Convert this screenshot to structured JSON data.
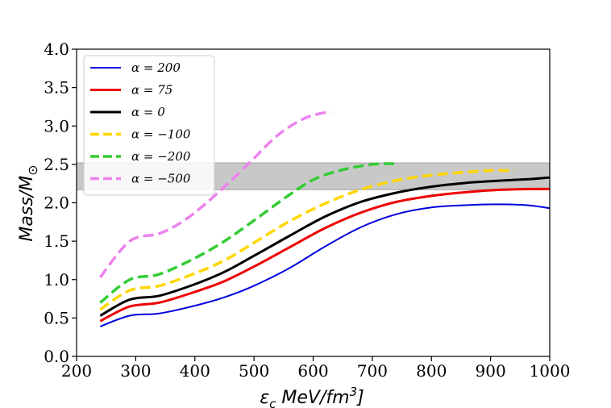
{
  "chart_data": {
    "type": "line",
    "title": "",
    "xlabel": "ε_c MeV/fm³]",
    "ylabel": "Mass/M_⊙",
    "xlim": [
      200,
      1000
    ],
    "ylim": [
      0.0,
      4.0
    ],
    "xticks": [
      "200",
      "300",
      "400",
      "500",
      "600",
      "700",
      "800",
      "900",
      "1000"
    ],
    "yticks": [
      "0.0",
      "0.5",
      "1.0",
      "1.5",
      "2.0",
      "2.5",
      "3.0",
      "3.5",
      "4.0"
    ],
    "grid": false,
    "legend_position": "top-left",
    "band": {
      "y_low": 2.17,
      "y_high": 2.52,
      "color": "#c8c8c8"
    },
    "series": [
      {
        "name": "α = 200",
        "color": "#0000dd",
        "dashed": false,
        "width": 2,
        "x": [
          240,
          290,
          340,
          400,
          450,
          500,
          560,
          620,
          680,
          740,
          800,
          860,
          910,
          960,
          1000
        ],
        "y": [
          0.39,
          0.53,
          0.56,
          0.66,
          0.77,
          0.92,
          1.15,
          1.43,
          1.68,
          1.85,
          1.94,
          1.97,
          1.98,
          1.97,
          1.93
        ]
      },
      {
        "name": "α = 75",
        "color": "#ee0000",
        "dashed": false,
        "width": 3,
        "x": [
          240,
          290,
          340,
          400,
          450,
          500,
          560,
          620,
          680,
          740,
          800,
          860,
          920,
          970,
          1000
        ],
        "y": [
          0.46,
          0.65,
          0.7,
          0.84,
          0.98,
          1.17,
          1.42,
          1.67,
          1.87,
          2.01,
          2.09,
          2.14,
          2.17,
          2.18,
          2.18
        ]
      },
      {
        "name": "α = 0",
        "color": "#000000",
        "dashed": false,
        "width": 3,
        "x": [
          240,
          290,
          340,
          400,
          450,
          500,
          560,
          620,
          680,
          740,
          800,
          860,
          920,
          970,
          1000
        ],
        "y": [
          0.53,
          0.74,
          0.79,
          0.94,
          1.1,
          1.31,
          1.57,
          1.82,
          2.01,
          2.13,
          2.21,
          2.26,
          2.29,
          2.31,
          2.33
        ]
      },
      {
        "name": "α = −100",
        "color": "#ffd700",
        "dashed": true,
        "width": 3.5,
        "x": [
          240,
          290,
          340,
          400,
          450,
          500,
          560,
          620,
          680,
          740,
          800,
          860,
          900,
          940
        ],
        "y": [
          0.61,
          0.86,
          0.92,
          1.08,
          1.25,
          1.48,
          1.76,
          1.99,
          2.17,
          2.29,
          2.36,
          2.4,
          2.42,
          2.42
        ]
      },
      {
        "name": "α = −200",
        "color": "#33cc33",
        "dashed": true,
        "width": 3.5,
        "x": [
          240,
          290,
          340,
          400,
          450,
          500,
          550,
          600,
          650,
          700,
          740
        ],
        "y": [
          0.7,
          1.0,
          1.07,
          1.28,
          1.5,
          1.77,
          2.05,
          2.3,
          2.43,
          2.5,
          2.51
        ]
      },
      {
        "name": "α = −500",
        "color": "#ee82ee",
        "dashed": true,
        "width": 3.5,
        "x": [
          240,
          290,
          340,
          380,
          420,
          460,
          500,
          540,
          580,
          610,
          630
        ],
        "y": [
          1.03,
          1.5,
          1.6,
          1.76,
          2.0,
          2.28,
          2.58,
          2.88,
          3.08,
          3.16,
          3.18
        ]
      }
    ]
  }
}
